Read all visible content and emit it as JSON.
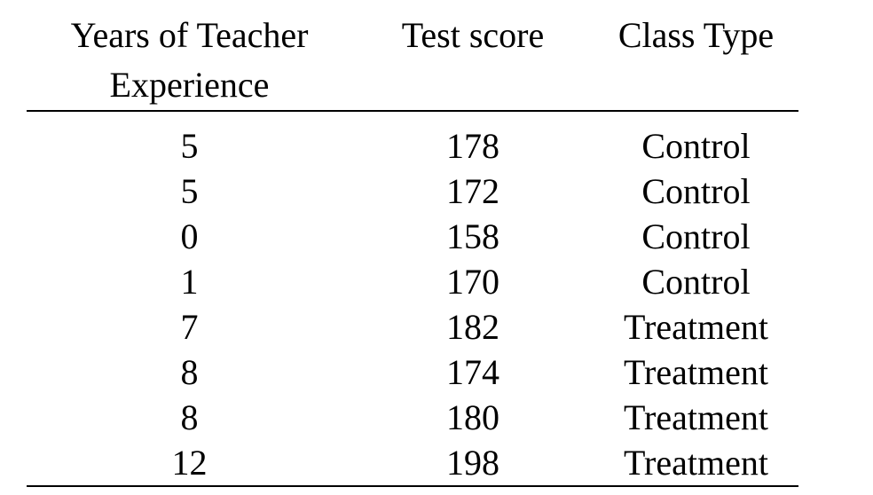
{
  "table": {
    "headers": [
      {
        "lines": [
          "Years of Teacher",
          "Experience"
        ]
      },
      {
        "lines": [
          "Test score"
        ]
      },
      {
        "lines": [
          "Class Type"
        ]
      }
    ],
    "rows": [
      {
        "years": "5",
        "score": "178",
        "class_type": "Control"
      },
      {
        "years": "5",
        "score": "172",
        "class_type": "Control"
      },
      {
        "years": "0",
        "score": "158",
        "class_type": "Control"
      },
      {
        "years": "1",
        "score": "170",
        "class_type": "Control"
      },
      {
        "years": "7",
        "score": "182",
        "class_type": "Treatment"
      },
      {
        "years": "8",
        "score": "174",
        "class_type": "Treatment"
      },
      {
        "years": "8",
        "score": "180",
        "class_type": "Treatment"
      },
      {
        "years": "12",
        "score": "198",
        "class_type": "Treatment"
      }
    ]
  }
}
